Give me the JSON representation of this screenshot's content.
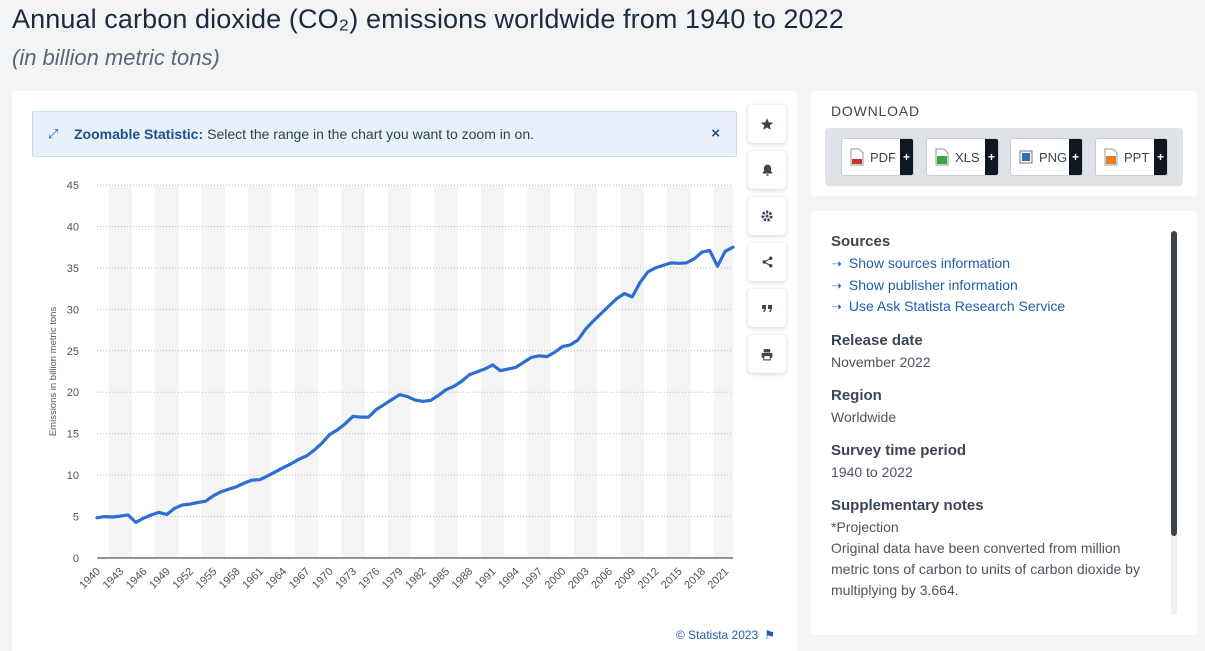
{
  "header": {
    "title": "Annual carbon dioxide (CO₂) emissions worldwide from 1940 to 2022",
    "subtitle": "(in billion metric tons)"
  },
  "zoom_banner": {
    "label": "Zoomable Statistic:",
    "text": "Select the range in the chart you want to zoom in on.",
    "close": "×"
  },
  "toolbar": [
    "star-icon",
    "bell-icon",
    "gear-icon",
    "share-icon",
    "quote-icon",
    "print-icon"
  ],
  "credit": "© Statista 2023",
  "download": {
    "title": "DOWNLOAD",
    "buttons": [
      {
        "label": "PDF",
        "icon": "pdf-file-icon",
        "color": "#c0392b"
      },
      {
        "label": "XLS",
        "icon": "xls-file-icon",
        "color": "#3aa33a"
      },
      {
        "label": "PNG",
        "icon": "png-file-icon",
        "color": "#2f6fb8"
      },
      {
        "label": "PPT",
        "icon": "ppt-file-icon",
        "color": "#e67e22"
      }
    ],
    "plus": "+"
  },
  "info": {
    "sources_heading": "Sources",
    "links": [
      "Show sources information",
      "Show publisher information",
      "Use Ask Statista Research Service"
    ],
    "release_heading": "Release date",
    "release_value": "November 2022",
    "region_heading": "Region",
    "region_value": "Worldwide",
    "period_heading": "Survey time period",
    "period_value": "1940 to 2022",
    "notes_heading": "Supplementary notes",
    "notes_line1": "*Projection",
    "notes_line2": "Original data have been converted from million metric tons of carbon to units of carbon dioxide by multiplying by 3.664."
  },
  "chart_data": {
    "type": "line",
    "title": "Annual carbon dioxide (CO₂) emissions worldwide from 1940 to 2022",
    "xlabel": "",
    "ylabel": "Emissions in billion metric tons",
    "ylim": [
      0,
      45
    ],
    "yticks": [
      0,
      5,
      10,
      15,
      20,
      25,
      30,
      35,
      40,
      45
    ],
    "xtick_labels": [
      "1940",
      "1943",
      "1946",
      "1949",
      "1952",
      "1955",
      "1958",
      "1961",
      "1964",
      "1967",
      "1970",
      "1973",
      "1976",
      "1979",
      "1982",
      "1985",
      "1988",
      "1991",
      "1994",
      "1997",
      "2000",
      "2003",
      "2006",
      "2009",
      "2012",
      "2015",
      "2018",
      "2021"
    ],
    "grid": "horizontal dotted, alternating vertical bands",
    "color": "#2c6fd1",
    "x": [
      1940,
      1941,
      1942,
      1943,
      1944,
      1945,
      1946,
      1947,
      1948,
      1949,
      1950,
      1951,
      1952,
      1953,
      1954,
      1955,
      1956,
      1957,
      1958,
      1959,
      1960,
      1961,
      1962,
      1963,
      1964,
      1965,
      1966,
      1967,
      1968,
      1969,
      1970,
      1971,
      1972,
      1973,
      1974,
      1975,
      1976,
      1977,
      1978,
      1979,
      1980,
      1981,
      1982,
      1983,
      1984,
      1985,
      1986,
      1987,
      1988,
      1989,
      1990,
      1991,
      1992,
      1993,
      1994,
      1995,
      1996,
      1997,
      1998,
      1999,
      2000,
      2001,
      2002,
      2003,
      2004,
      2005,
      2006,
      2007,
      2008,
      2009,
      2010,
      2011,
      2012,
      2013,
      2014,
      2015,
      2016,
      2017,
      2018,
      2019,
      2020,
      2021,
      2022
    ],
    "values": [
      4.85,
      5.0,
      4.95,
      5.05,
      5.2,
      4.3,
      4.8,
      5.2,
      5.5,
      5.25,
      6.0,
      6.4,
      6.5,
      6.7,
      6.85,
      7.5,
      8.0,
      8.3,
      8.6,
      9.05,
      9.4,
      9.45,
      9.9,
      10.4,
      10.9,
      11.35,
      11.9,
      12.3,
      13.0,
      13.85,
      14.9,
      15.45,
      16.2,
      17.1,
      17.0,
      17.0,
      17.9,
      18.5,
      19.1,
      19.7,
      19.5,
      19.05,
      18.9,
      19.0,
      19.6,
      20.3,
      20.7,
      21.3,
      22.1,
      22.45,
      22.8,
      23.3,
      22.6,
      22.8,
      23.0,
      23.6,
      24.2,
      24.4,
      24.3,
      24.8,
      25.5,
      25.7,
      26.3,
      27.6,
      28.6,
      29.5,
      30.4,
      31.3,
      31.9,
      31.5,
      33.2,
      34.5,
      35.0,
      35.3,
      35.6,
      35.55,
      35.6,
      36.1,
      36.9,
      37.1,
      35.2,
      37.0,
      37.5
    ]
  }
}
